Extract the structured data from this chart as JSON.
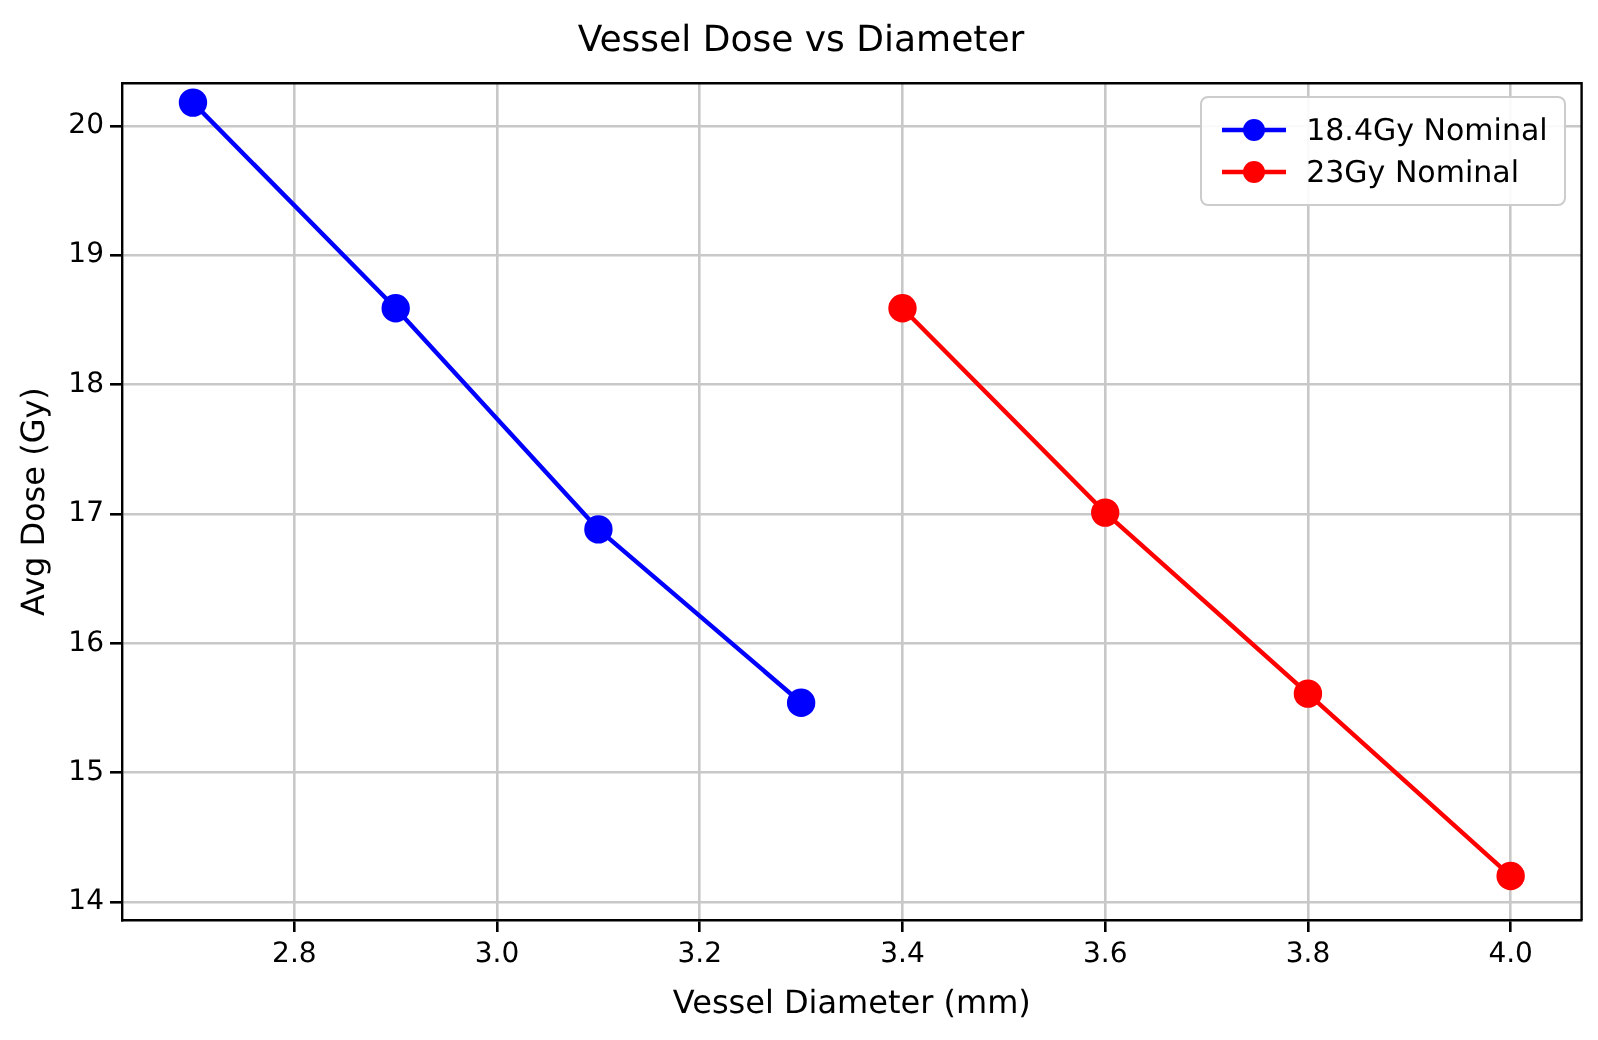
{
  "chart_data": {
    "type": "line",
    "title": "Vessel Dose vs Diameter",
    "xlabel": "Vessel Diameter (mm)",
    "ylabel": "Avg Dose (Gy)",
    "xlim": [
      2.63,
      4.07
    ],
    "xticks": [
      {
        "value": 2.8,
        "label": "2.8"
      },
      {
        "value": 3.0,
        "label": "3.0"
      },
      {
        "value": 3.2,
        "label": "3.2"
      },
      {
        "value": 3.4,
        "label": "3.4"
      },
      {
        "value": 3.6,
        "label": "3.6"
      },
      {
        "value": 3.8,
        "label": "3.8"
      },
      {
        "value": 4.0,
        "label": "4.0"
      }
    ],
    "ylim": [
      13.86,
      20.33
    ],
    "yticks": [
      14,
      15,
      16,
      17,
      18,
      19,
      20
    ],
    "series": [
      {
        "name": "18.4Gy Nominal",
        "color": "#0000ff",
        "x": [
          2.7,
          2.9,
          3.1,
          3.3
        ],
        "values": [
          20.18,
          18.59,
          16.88,
          15.54
        ]
      },
      {
        "name": "23Gy Nominal",
        "color": "#ff0000",
        "x": [
          3.4,
          3.6,
          3.8,
          4.0
        ],
        "values": [
          18.59,
          17.01,
          15.61,
          14.2
        ]
      }
    ],
    "grid": true,
    "legend": "top right",
    "marker": "circle",
    "line_style": "solid"
  }
}
